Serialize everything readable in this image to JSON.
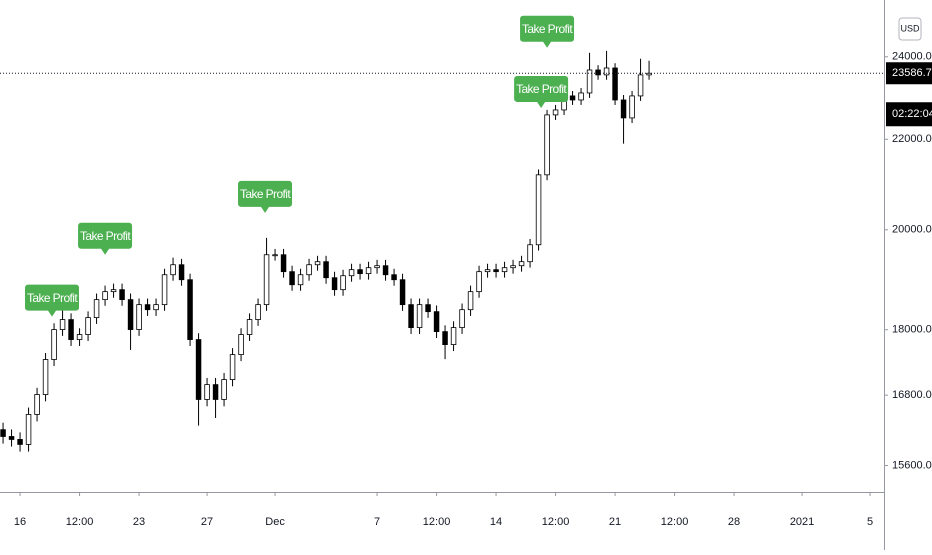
{
  "chart_data": {
    "type": "candlestick",
    "log_scale": true,
    "currency": "USD",
    "last_price": 23586.73,
    "countdown": "02:22:04",
    "xlim": [
      -1.18,
      50.82
    ],
    "ylim": [
      15170,
      25480
    ],
    "xticks": [
      {
        "value": 0,
        "label": "16"
      },
      {
        "value": 3.5,
        "label": "12:00"
      },
      {
        "value": 7,
        "label": "23"
      },
      {
        "value": 11,
        "label": "27"
      },
      {
        "value": 15,
        "label": "Dec"
      },
      {
        "value": 21,
        "label": "7"
      },
      {
        "value": 24.5,
        "label": "12:00"
      },
      {
        "value": 28,
        "label": "14"
      },
      {
        "value": 31.5,
        "label": "12:00"
      },
      {
        "value": 35,
        "label": "21"
      },
      {
        "value": 38.5,
        "label": "12:00"
      },
      {
        "value": 42,
        "label": "28"
      },
      {
        "value": 46,
        "label": "2021"
      },
      {
        "value": 50,
        "label": "5"
      }
    ],
    "yticks": [
      {
        "value": 15600,
        "label": "15600.00"
      },
      {
        "value": 16800,
        "label": "16800.00"
      },
      {
        "value": 18000,
        "label": "18000.00"
      },
      {
        "value": 20000,
        "label": "20000.00"
      },
      {
        "value": 22000,
        "label": "22000.00"
      },
      {
        "value": 24000,
        "label": "24000.00"
      }
    ],
    "x": [
      -1,
      -0.5,
      0,
      0.5,
      1,
      1.5,
      2,
      2.5,
      3,
      3.5,
      4,
      4.5,
      5,
      5.5,
      6,
      6.5,
      7,
      7.5,
      8,
      8.5,
      9,
      9.5,
      10,
      10.5,
      11,
      11.5,
      12,
      12.5,
      13,
      13.5,
      14,
      14.5,
      15,
      15.5,
      16,
      16.5,
      17,
      17.5,
      18,
      18.5,
      19,
      19.5,
      20,
      20.5,
      21,
      21.5,
      22,
      22.5,
      23,
      23.5,
      24,
      24.5,
      25,
      25.5,
      26,
      26.5,
      27,
      27.5,
      28,
      28.5,
      29,
      29.5,
      30,
      30.5,
      31,
      31.5,
      32,
      32.5,
      33,
      33.5,
      34,
      34.5,
      35,
      35.5,
      36,
      36.5,
      37
    ],
    "open": [
      16200,
      16084,
      16034,
      15950,
      16462,
      16811,
      17443,
      18003,
      18193,
      17814,
      17908,
      18231,
      18580,
      18737,
      18776,
      18580,
      18003,
      18482,
      18384,
      18482,
      19074,
      19276,
      18974,
      17814,
      16724,
      16988,
      16724,
      17078,
      17534,
      17908,
      18193,
      18482,
      19480,
      19480,
      19136,
      18874,
      19074,
      19276,
      19338,
      19014,
      18776,
      19054,
      19176,
      19096,
      19216,
      19256,
      19074,
      18974,
      18482,
      18040,
      18482,
      18346,
      17964,
      17720,
      18040,
      18384,
      18737,
      19136,
      19176,
      19136,
      19216,
      19256,
      19338,
      19686,
      21192,
      22574,
      22692,
      23030,
      22932,
      23102,
      23668,
      23546,
      23718,
      22932,
      22502,
      23030,
      23546
    ],
    "high": [
      16320,
      16204,
      16154,
      16582,
      16931,
      17563,
      18123,
      18420,
      18313,
      18028,
      18351,
      18700,
      18857,
      18896,
      18896,
      18700,
      18602,
      18602,
      18602,
      19194,
      19420,
      19396,
      19094,
      17934,
      17108,
      17108,
      17198,
      17654,
      18028,
      18313,
      18602,
      19830,
      19600,
      19600,
      19256,
      19194,
      19396,
      19458,
      19458,
      19134,
      19174,
      19296,
      19296,
      19336,
      19376,
      19376,
      19194,
      19094,
      18602,
      18602,
      18602,
      18466,
      18084,
      18160,
      18504,
      18857,
      19256,
      19296,
      19296,
      19336,
      19376,
      19458,
      19806,
      21312,
      22694,
      22812,
      23150,
      23150,
      23222,
      24100,
      23788,
      24150,
      23838,
      23052,
      23150,
      23950,
      23900
    ],
    "low": [
      15964,
      15914,
      15830,
      15830,
      16342,
      16691,
      17323,
      17883,
      17694,
      17694,
      17788,
      18111,
      18460,
      18617,
      18460,
      17620,
      17883,
      18264,
      18264,
      18362,
      18954,
      18854,
      17694,
      16270,
      16604,
      16400,
      16604,
      16958,
      17414,
      17788,
      18073,
      18362,
      19360,
      19016,
      18754,
      18754,
      18954,
      19156,
      18894,
      18656,
      18656,
      18934,
      18976,
      18976,
      19096,
      18954,
      18854,
      18362,
      17920,
      17920,
      18226,
      17844,
      17450,
      17600,
      17920,
      18264,
      18617,
      19016,
      19016,
      19016,
      19096,
      19136,
      19218,
      19566,
      21072,
      22454,
      22572,
      22812,
      22812,
      22982,
      23426,
      23426,
      22812,
      21900,
      22382,
      22910,
      23426
    ],
    "close": [
      16084,
      16034,
      15950,
      16462,
      16811,
      17443,
      18003,
      18193,
      17814,
      17908,
      18231,
      18580,
      18737,
      18776,
      18580,
      18003,
      18482,
      18384,
      18482,
      19074,
      19276,
      18974,
      17814,
      16724,
      16988,
      16724,
      17078,
      17534,
      17908,
      18193,
      18482,
      19480,
      19480,
      19136,
      18874,
      19074,
      19276,
      19338,
      19014,
      18776,
      19054,
      19176,
      19096,
      19216,
      19256,
      19074,
      18974,
      18482,
      18040,
      18482,
      18346,
      17964,
      17720,
      18040,
      18384,
      18737,
      19136,
      19176,
      19136,
      19216,
      19256,
      19338,
      19686,
      21192,
      22574,
      22692,
      23030,
      22932,
      23102,
      23668,
      23546,
      23718,
      22932,
      22502,
      23030,
      23546,
      23586.73
    ],
    "annotations": [
      {
        "text": "Take Profit",
        "x": 1.88,
        "y": 18250
      },
      {
        "text": "Take Profit",
        "x": 5.0,
        "y": 19480
      },
      {
        "text": "Take Profit",
        "x": 14.41,
        "y": 20360
      },
      {
        "text": "Take Profit",
        "x": 31.0,
        "y": 24230
      },
      {
        "text": "Take Profit",
        "x": 30.65,
        "y": 22740
      }
    ]
  }
}
